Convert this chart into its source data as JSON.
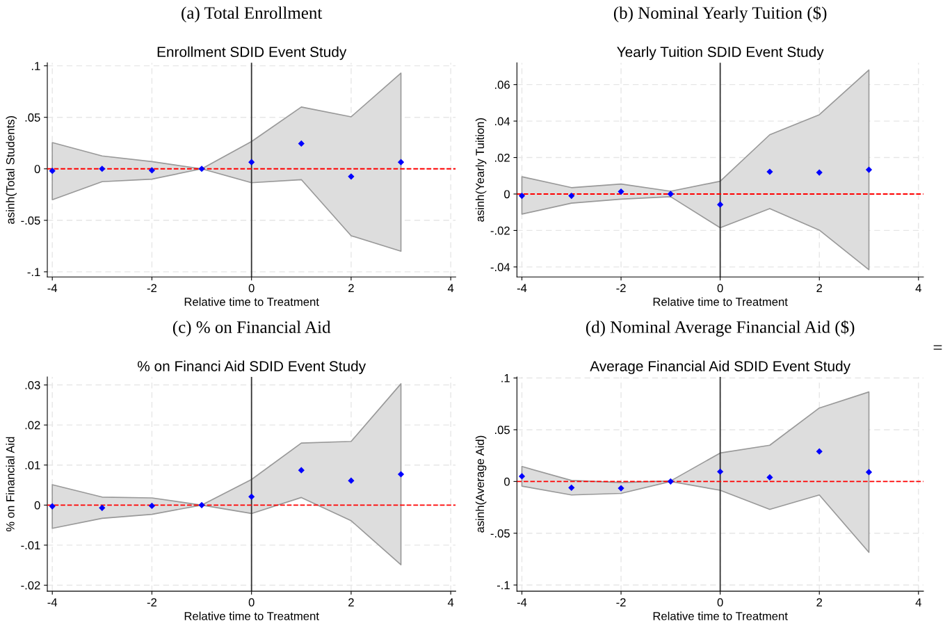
{
  "chart_data": [
    {
      "type": "scatter",
      "title": "(a) Total Enrollment",
      "subtitle": "Enrollment SDID Event Study",
      "xlabel": "Relative time to Treatment",
      "ylabel": "asinh(Total Students)",
      "marker": "diamond",
      "grid": true,
      "x": [
        -4,
        -3,
        -2,
        -1,
        0,
        1,
        2,
        3
      ],
      "series": [
        {
          "color": "#0000ff",
          "values": [
            -0.002,
            0,
            -0.0015,
            0,
            0.0065,
            0.0245,
            -0.0075,
            0.0065
          ],
          "lower": [
            -0.03,
            -0.0125,
            -0.01,
            0,
            -0.0135,
            -0.0105,
            -0.065,
            -0.08
          ],
          "upper": [
            0.0255,
            0.0125,
            0.007,
            0,
            0.0265,
            0.06,
            0.0505,
            0.093
          ]
        }
      ],
      "xlim": [
        -4.1,
        4.1
      ],
      "xticks": [
        -4,
        -2,
        0,
        2,
        4
      ],
      "ylim": [
        -0.105,
        0.103
      ],
      "yticks": [
        {
          "value": -0.1,
          "label": "-.1"
        },
        {
          "value": -0.05,
          "label": "-.05"
        },
        0,
        {
          "value": 0.05,
          "label": ".05"
        },
        {
          "value": 0.1,
          "label": ".1"
        }
      ],
      "ref_lines": [
        {
          "axis": "x",
          "value": 0,
          "color": "#333333",
          "line_style": "solid"
        },
        {
          "axis": "y",
          "value": 0,
          "color": "#ff0000",
          "line_style": "dashed"
        }
      ]
    },
    {
      "type": "scatter",
      "title": "(b) Nominal Yearly Tuition ($)",
      "subtitle": "Yearly Tuition SDID Event Study",
      "xlabel": "Relative time to Treatment",
      "ylabel": "asinh(Yearly Tuition)",
      "marker": "diamond",
      "grid": true,
      "x": [
        -4,
        -3,
        -2,
        -1,
        0,
        1,
        2,
        3
      ],
      "series": [
        {
          "color": "#0000ff",
          "values": [
            -0.001,
            -0.001,
            0.0013,
            0,
            -0.0058,
            0.0122,
            0.0118,
            0.0133
          ],
          "lower": [
            -0.011,
            -0.005,
            -0.0028,
            -0.0015,
            -0.0185,
            -0.008,
            -0.0198,
            -0.0415
          ],
          "upper": [
            0.0095,
            0.0035,
            0.0055,
            0.0015,
            0.007,
            0.0325,
            0.0435,
            0.068
          ]
        }
      ],
      "xlim": [
        -4.1,
        4.1
      ],
      "xticks": [
        -4,
        -2,
        0,
        2,
        4
      ],
      "ylim": [
        -0.0455,
        0.072
      ],
      "yticks": [
        {
          "value": -0.04,
          "label": "-.04"
        },
        {
          "value": -0.02,
          "label": "-.02"
        },
        0,
        {
          "value": 0.02,
          "label": ".02"
        },
        {
          "value": 0.04,
          "label": ".04"
        },
        {
          "value": 0.06,
          "label": ".06"
        }
      ],
      "ref_lines": [
        {
          "axis": "x",
          "value": 0,
          "color": "#333333",
          "line_style": "solid"
        },
        {
          "axis": "y",
          "value": 0,
          "color": "#ff0000",
          "line_style": "dashed"
        }
      ]
    },
    {
      "type": "scatter",
      "title": "(c) % on Financial Aid",
      "subtitle": "% on Financi Aid SDID Event Study",
      "xlabel": "Relative time to Treatment",
      "ylabel": "% on Financial Aid",
      "marker": "diamond",
      "grid": true,
      "x": [
        -4,
        -3,
        -2,
        -1,
        0,
        1,
        2,
        3
      ],
      "series": [
        {
          "color": "#0000ff",
          "values": [
            -0.0003,
            -0.0007,
            -0.0002,
            0,
            0.0021,
            0.0087,
            0.0061,
            0.0077
          ],
          "lower": [
            -0.0058,
            -0.0033,
            -0.0023,
            0,
            -0.0021,
            0.0019,
            -0.0039,
            -0.0149
          ],
          "upper": [
            0.0051,
            0.002,
            0.0018,
            0,
            0.0064,
            0.0155,
            0.0159,
            0.0303
          ]
        }
      ],
      "xlim": [
        -4.1,
        4.1
      ],
      "xticks": [
        -4,
        -2,
        0,
        2,
        4
      ],
      "ylim": [
        -0.0215,
        0.032
      ],
      "yticks": [
        {
          "value": -0.02,
          "label": "-.02"
        },
        {
          "value": -0.01,
          "label": "-.01"
        },
        0,
        {
          "value": 0.01,
          "label": ".01"
        },
        {
          "value": 0.02,
          "label": ".02"
        },
        {
          "value": 0.03,
          "label": ".03"
        }
      ],
      "ref_lines": [
        {
          "axis": "x",
          "value": 0,
          "color": "#333333",
          "line_style": "solid"
        },
        {
          "axis": "y",
          "value": 0,
          "color": "#ff0000",
          "line_style": "dashed"
        }
      ]
    },
    {
      "type": "scatter",
      "title": "(d) Nominal Average Financial Aid ($)",
      "subtitle": "Average Financial Aid SDID Event Study",
      "xlabel": "Relative time to Treatment",
      "ylabel": "asinh(Average Aid)",
      "marker": "diamond",
      "grid": true,
      "x": [
        -4,
        -3,
        -2,
        -1,
        0,
        1,
        2,
        3
      ],
      "series": [
        {
          "color": "#0000ff",
          "values": [
            0.005,
            -0.006,
            -0.0065,
            0,
            0.0095,
            0.004,
            0.029,
            0.009
          ],
          "lower": [
            -0.0045,
            -0.013,
            -0.0115,
            0,
            -0.0085,
            -0.027,
            -0.013,
            -0.0685
          ],
          "upper": [
            0.0145,
            0.001,
            -0.001,
            0.0005,
            0.0275,
            0.035,
            0.071,
            0.0865
          ]
        }
      ],
      "xlim": [
        -4.1,
        4.1
      ],
      "xticks": [
        -4,
        -2,
        0,
        2,
        4
      ],
      "ylim": [
        -0.106,
        0.101
      ],
      "yticks": [
        {
          "value": -0.1,
          "label": "-.1"
        },
        {
          "value": -0.05,
          "label": "-.05"
        },
        0,
        {
          "value": 0.05,
          "label": ".05"
        },
        {
          "value": 0.1,
          "label": ".1"
        }
      ],
      "ref_lines": [
        {
          "axis": "x",
          "value": 0,
          "color": "#333333",
          "line_style": "solid"
        },
        {
          "axis": "y",
          "value": 0,
          "color": "#ff0000",
          "line_style": "dashed"
        }
      ],
      "annotations": [
        "="
      ]
    }
  ]
}
